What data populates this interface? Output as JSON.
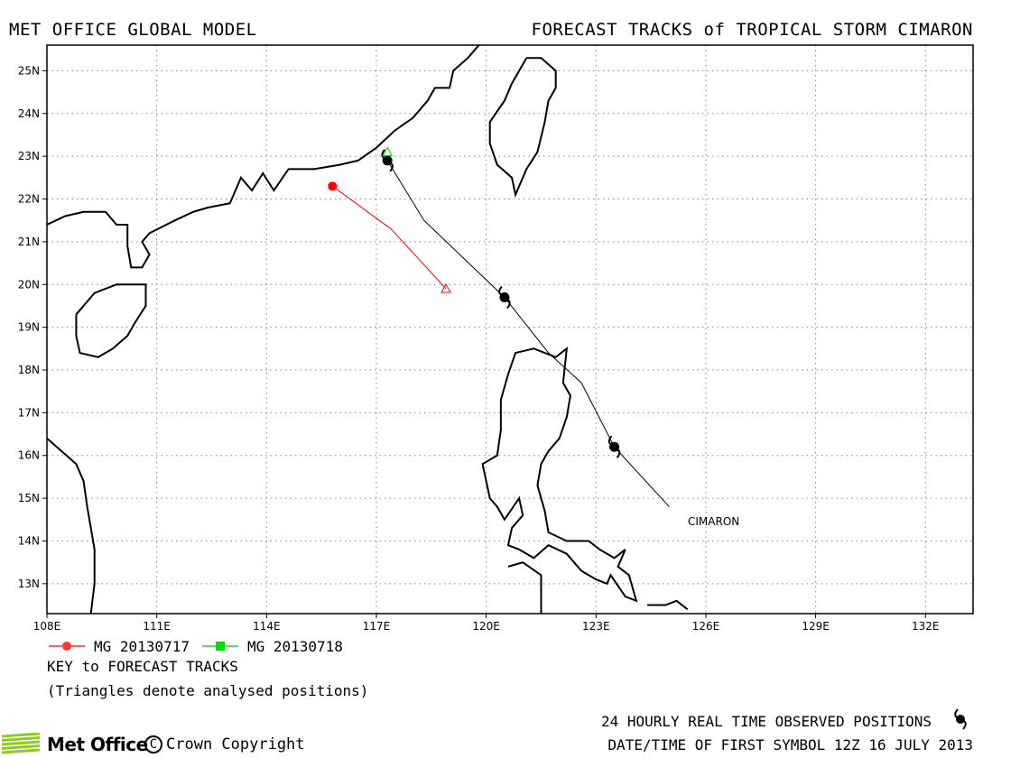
{
  "header": {
    "left_title": "MET OFFICE GLOBAL MODEL",
    "right_title": "FORECAST TRACKS of TROPICAL STORM CIMARON"
  },
  "map": {
    "lon_range": [
      108,
      133.3
    ],
    "lat_range": [
      12.3,
      25.6
    ],
    "grid": true,
    "lon_ticks": [
      "108E",
      "111E",
      "114E",
      "117E",
      "120E",
      "123E",
      "126E",
      "129E",
      "132E"
    ],
    "lat_ticks": [
      "13N",
      "14N",
      "15N",
      "16N",
      "17N",
      "18N",
      "19N",
      "20N",
      "21N",
      "22N",
      "23N",
      "24N",
      "25N"
    ],
    "storm_label": "CIMARON"
  },
  "chart_data": {
    "type": "map-tracks",
    "observed_track": {
      "name": "CIMARON",
      "color": "#000000",
      "points": [
        {
          "lon": 125.0,
          "lat": 14.8
        },
        {
          "lon": 123.5,
          "lat": 16.2
        },
        {
          "lon": 122.6,
          "lat": 17.7
        },
        {
          "lon": 121.7,
          "lat": 18.4
        },
        {
          "lon": 120.5,
          "lat": 19.7
        },
        {
          "lon": 118.3,
          "lat": 21.5
        },
        {
          "lon": 117.3,
          "lat": 22.9
        }
      ],
      "symbols_24h": [
        {
          "lon": 123.5,
          "lat": 16.2
        },
        {
          "lon": 120.5,
          "lat": 19.7
        },
        {
          "lon": 117.3,
          "lat": 22.9
        }
      ]
    },
    "forecast_tracks": [
      {
        "name": "MG 20130717",
        "color": "#ff0000",
        "points": [
          {
            "lon": 118.9,
            "lat": 19.9
          },
          {
            "lon": 117.4,
            "lat": 21.3
          },
          {
            "lon": 115.8,
            "lat": 22.3
          }
        ],
        "analysed_position": {
          "lon": 118.9,
          "lat": 19.9
        }
      },
      {
        "name": "MG 20130718",
        "color": "#00cc00",
        "points": [
          {
            "lon": 117.3,
            "lat": 23.1
          }
        ],
        "analysed_position": {
          "lon": 117.3,
          "lat": 23.1
        }
      }
    ]
  },
  "legend": {
    "items": [
      {
        "label": "MG 20130717",
        "color": "#ff0000",
        "marker": "circle"
      },
      {
        "label": "MG 20130718",
        "color": "#00cc00",
        "marker": "square"
      }
    ],
    "key_title": "KEY to FORECAST TRACKS",
    "key_note": "(Triangles denote analysed positions)"
  },
  "footer": {
    "observed_text": "24 HOURLY REAL TIME OBSERVED POSITIONS",
    "date_text": "DATE/TIME OF FIRST SYMBOL 12Z 16 JULY 2013",
    "logo_text": "Met Office",
    "copyright_symbol": "C",
    "copyright_text": "Crown Copyright",
    "logo_color": "#8ccc22"
  }
}
